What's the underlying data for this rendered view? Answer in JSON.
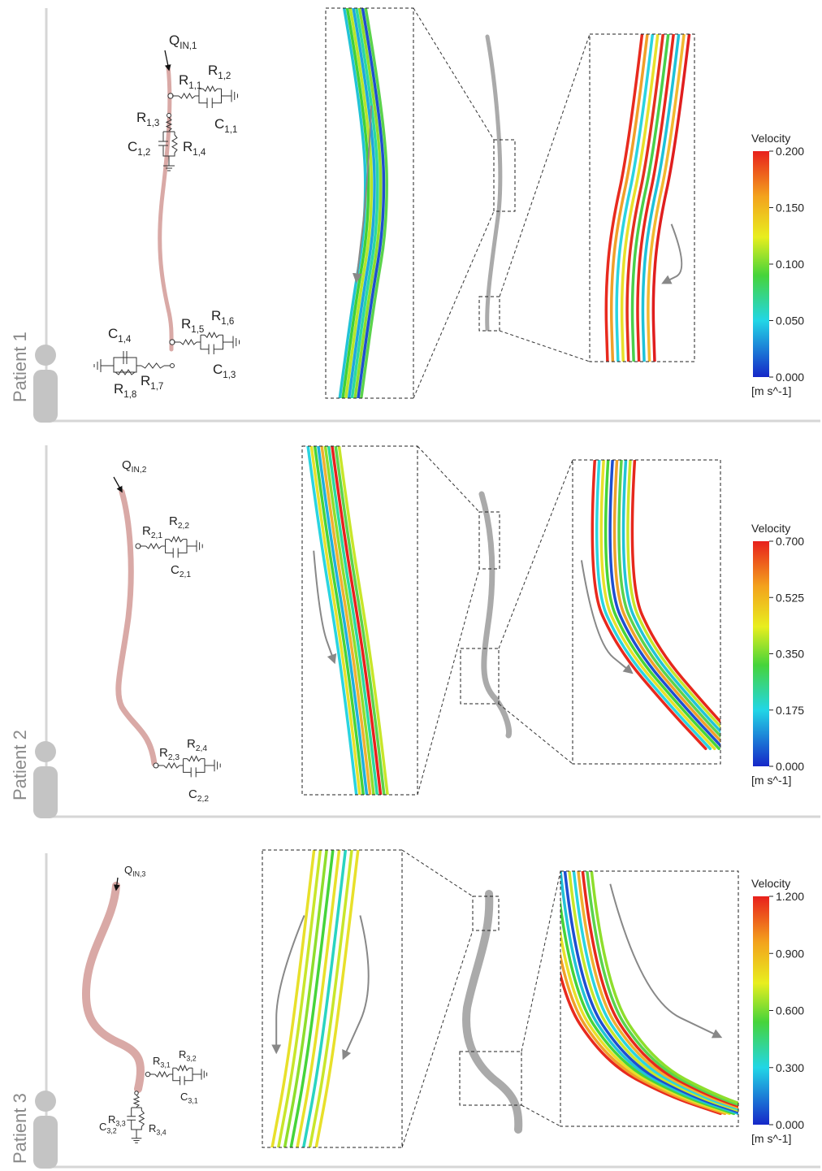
{
  "panels": [
    {
      "patient": "Patient 1",
      "inflow": {
        "symbol": "Q",
        "sub": "IN,1"
      },
      "components": [
        {
          "symbol": "R",
          "sub": "1,1"
        },
        {
          "symbol": "R",
          "sub": "1,2"
        },
        {
          "symbol": "R",
          "sub": "1,3"
        },
        {
          "symbol": "C",
          "sub": "1,1"
        },
        {
          "symbol": "C",
          "sub": "1,2"
        },
        {
          "symbol": "R",
          "sub": "1,4"
        },
        {
          "symbol": "C",
          "sub": "1,4"
        },
        {
          "symbol": "R",
          "sub": "1,5"
        },
        {
          "symbol": "R",
          "sub": "1,6"
        },
        {
          "symbol": "C",
          "sub": "1,3"
        },
        {
          "symbol": "R",
          "sub": "1,8"
        },
        {
          "symbol": "R",
          "sub": "1,7"
        }
      ],
      "colorbar": {
        "title": "Velocity",
        "unit": "[m s^-1]",
        "range": [
          0,
          0.2
        ],
        "ticks": [
          {
            "value": 0,
            "label": "0.000"
          },
          {
            "value": 0.05,
            "label": "0.050"
          },
          {
            "value": 0.1,
            "label": "0.100"
          },
          {
            "value": 0.15,
            "label": "0.150"
          },
          {
            "value": 0.2,
            "label": "0.200"
          }
        ]
      }
    },
    {
      "patient": "Patient 2",
      "inflow": {
        "symbol": "Q",
        "sub": "IN,2"
      },
      "components": [
        {
          "symbol": "R",
          "sub": "2,1"
        },
        {
          "symbol": "R",
          "sub": "2,2"
        },
        {
          "symbol": "C",
          "sub": "2,1"
        },
        {
          "symbol": "R",
          "sub": "2,3"
        },
        {
          "symbol": "R",
          "sub": "2,4"
        },
        {
          "symbol": "C",
          "sub": "2,2"
        }
      ],
      "colorbar": {
        "title": "Velocity",
        "unit": "[m s^-1]",
        "range": [
          0,
          0.7
        ],
        "ticks": [
          {
            "value": 0,
            "label": "0.000"
          },
          {
            "value": 0.175,
            "label": "0.175"
          },
          {
            "value": 0.35,
            "label": "0.350"
          },
          {
            "value": 0.525,
            "label": "0.525"
          },
          {
            "value": 0.7,
            "label": "0.700"
          }
        ]
      }
    },
    {
      "patient": "Patient 3",
      "inflow": {
        "symbol": "Q",
        "sub": "IN,3"
      },
      "components": [
        {
          "symbol": "R",
          "sub": "3,1"
        },
        {
          "symbol": "R",
          "sub": "3,2"
        },
        {
          "symbol": "C",
          "sub": "3,1"
        },
        {
          "symbol": "R",
          "sub": "3,3"
        },
        {
          "symbol": "C",
          "sub": "3,2"
        },
        {
          "symbol": "R",
          "sub": "3,4"
        }
      ],
      "colorbar": {
        "title": "Velocity",
        "unit": "[m s^-1]",
        "range": [
          0,
          1.2
        ],
        "ticks": [
          {
            "value": 0,
            "label": "0.000"
          },
          {
            "value": 0.3,
            "label": "0.300"
          },
          {
            "value": 0.6,
            "label": "0.600"
          },
          {
            "value": 0.9,
            "label": "0.900"
          },
          {
            "value": 1.2,
            "label": "1.200"
          }
        ]
      }
    }
  ]
}
